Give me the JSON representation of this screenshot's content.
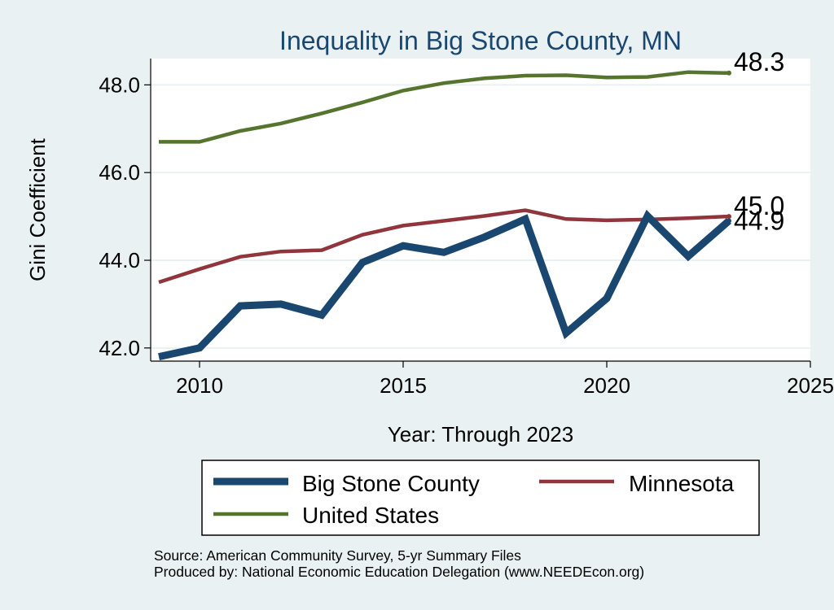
{
  "chart_data": {
    "type": "line",
    "title": "Inequality in Big Stone County, MN",
    "xlabel": "Year: Through 2023",
    "ylabel": "Gini Coefficient",
    "xlim": [
      2008.8,
      2025
    ],
    "ylim": [
      41.7,
      48.6
    ],
    "x_ticks": [
      2010,
      2015,
      2020,
      2025
    ],
    "y_ticks": [
      42,
      44,
      46,
      48
    ],
    "y_tick_labels": [
      "42.0",
      "44.0",
      "46.0",
      "48.0"
    ],
    "grid": true,
    "x": [
      2009,
      2010,
      2011,
      2012,
      2013,
      2014,
      2015,
      2016,
      2017,
      2018,
      2019,
      2020,
      2021,
      2022,
      2023
    ],
    "series": [
      {
        "name": "Big Stone County",
        "color": "#1a476f",
        "values": [
          41.8,
          42.0,
          42.96,
          43.0,
          42.75,
          43.95,
          44.33,
          44.18,
          44.53,
          44.94,
          42.34,
          43.13,
          45.01,
          44.09,
          44.9
        ],
        "end_label": "44.9"
      },
      {
        "name": "Minnesota",
        "color": "#90353b",
        "values": [
          43.5,
          43.8,
          44.08,
          44.2,
          44.23,
          44.58,
          44.79,
          44.9,
          45.01,
          45.14,
          44.94,
          44.91,
          44.93,
          44.96,
          45.0
        ],
        "end_label": "45.0"
      },
      {
        "name": "United States",
        "color": "#55752f",
        "values": [
          46.7,
          46.7,
          46.95,
          47.12,
          47.35,
          47.6,
          47.87,
          48.04,
          48.15,
          48.21,
          48.22,
          48.17,
          48.18,
          48.29,
          48.27
        ],
        "end_label": "48.3"
      }
    ],
    "legend": {
      "position": "bottom",
      "order": [
        "Big Stone County",
        "Minnesota",
        "United States"
      ]
    }
  },
  "source_lines": [
    "Source: American Community Survey, 5-yr Summary Files",
    "Produced by: National Economic Education Delegation (www.NEEDEcon.org)"
  ]
}
